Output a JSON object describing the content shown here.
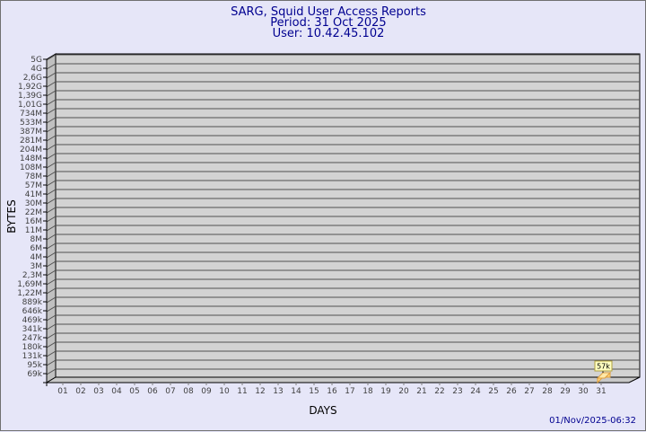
{
  "chart_data": {
    "type": "bar",
    "title": "SARG, Squid User Access Reports",
    "subtitle_lines": [
      "Period: 31 Oct 2025",
      "User: 10.42.45.102"
    ],
    "xlabel": "DAYS",
    "ylabel": "BYTES",
    "y_tick_labels": [
      "5G",
      "4G",
      "2,6G",
      "1,92G",
      "1,39G",
      "1,01G",
      "734M",
      "533M",
      "387M",
      "281M",
      "204M",
      "148M",
      "108M",
      "78M",
      "57M",
      "41M",
      "30M",
      "22M",
      "16M",
      "11M",
      "8M",
      "6M",
      "4M",
      "3M",
      "2,3M",
      "1,69M",
      "1,22M",
      "889k",
      "646k",
      "469k",
      "341k",
      "247k",
      "180k",
      "131k",
      "95k",
      "69k"
    ],
    "categories": [
      "01",
      "02",
      "03",
      "04",
      "05",
      "06",
      "07",
      "08",
      "09",
      "10",
      "11",
      "12",
      "13",
      "14",
      "15",
      "16",
      "17",
      "18",
      "19",
      "20",
      "21",
      "22",
      "23",
      "24",
      "25",
      "26",
      "27",
      "28",
      "29",
      "30",
      "31"
    ],
    "bars": [
      {
        "day": "31",
        "value_label": "57k"
      }
    ],
    "grid": true,
    "colors": {
      "wall": "#d3d3d3",
      "bar": "#ffd37a",
      "bar_top": "#ffe8a8",
      "label_box": "#ffffc0",
      "title": "#000090"
    }
  },
  "footer": {
    "timestamp": "01/Nov/2025-06:32"
  }
}
